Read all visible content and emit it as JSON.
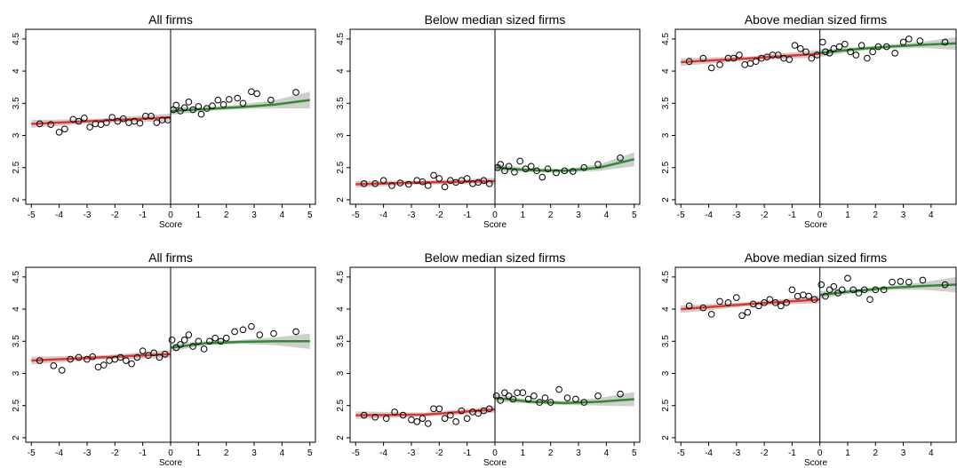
{
  "chart_data": [
    {
      "type": "scatter",
      "title": "All firms",
      "x_label": "Score",
      "xlim": [
        -5.2,
        5.2
      ],
      "ylim": [
        1.93,
        4.65
      ],
      "xticks": [
        -5,
        -4,
        -3,
        -2,
        -1,
        0,
        1,
        2,
        3,
        4,
        5
      ],
      "yticks": [
        2,
        2.5,
        3,
        3.5,
        4,
        4.5
      ],
      "cutoff": 0,
      "points": {
        "x": [
          -4.7,
          -4.3,
          -4.0,
          -3.8,
          -3.5,
          -3.3,
          -3.1,
          -2.9,
          -2.7,
          -2.5,
          -2.3,
          -2.1,
          -1.9,
          -1.7,
          -1.5,
          -1.3,
          -1.1,
          -0.9,
          -0.7,
          -0.5,
          -0.3,
          -0.1,
          0.1,
          0.2,
          0.35,
          0.5,
          0.65,
          0.8,
          1.0,
          1.1,
          1.3,
          1.5,
          1.7,
          1.9,
          2.1,
          2.4,
          2.6,
          2.9,
          3.1,
          3.6,
          4.5
        ],
        "values": [
          3.18,
          3.17,
          3.05,
          3.1,
          3.25,
          3.22,
          3.27,
          3.13,
          3.18,
          3.17,
          3.2,
          3.28,
          3.22,
          3.26,
          3.2,
          3.22,
          3.19,
          3.3,
          3.3,
          3.2,
          3.24,
          3.24,
          3.4,
          3.47,
          3.38,
          3.43,
          3.52,
          3.4,
          3.45,
          3.33,
          3.42,
          3.46,
          3.55,
          3.48,
          3.56,
          3.58,
          3.5,
          3.68,
          3.65,
          3.55,
          3.67
        ]
      },
      "fits": [
        {
          "color": "#e8322b",
          "x": [
            -5,
            -2.5,
            0
          ],
          "values": [
            3.18,
            3.23,
            3.28
          ],
          "lower": [
            3.12,
            3.2,
            3.22
          ],
          "upper": [
            3.24,
            3.26,
            3.34
          ]
        },
        {
          "color": "#2e8b2e",
          "x": [
            0,
            1.25,
            2.5,
            3.75,
            5
          ],
          "values": [
            3.38,
            3.41,
            3.44,
            3.48,
            3.55
          ],
          "lower": [
            3.32,
            3.38,
            3.41,
            3.42,
            3.42
          ],
          "upper": [
            3.44,
            3.44,
            3.48,
            3.55,
            3.68
          ]
        }
      ]
    },
    {
      "type": "scatter",
      "title": "Below median sized firms",
      "x_label": "Score",
      "xlim": [
        -5.2,
        5.2
      ],
      "ylim": [
        1.93,
        4.65
      ],
      "xticks": [
        -5,
        -4,
        -3,
        -2,
        -1,
        0,
        1,
        2,
        3,
        4,
        5
      ],
      "yticks": [
        2,
        2.5,
        3,
        3.5,
        4,
        4.5
      ],
      "cutoff": 0,
      "points": {
        "x": [
          -4.7,
          -4.3,
          -4.0,
          -3.7,
          -3.4,
          -3.1,
          -2.8,
          -2.6,
          -2.4,
          -2.2,
          -2.0,
          -1.8,
          -1.6,
          -1.4,
          -1.2,
          -1.0,
          -0.8,
          -0.6,
          -0.4,
          -0.2,
          0.1,
          0.2,
          0.35,
          0.5,
          0.7,
          0.9,
          1.1,
          1.3,
          1.5,
          1.7,
          1.9,
          2.2,
          2.5,
          2.8,
          3.2,
          3.7,
          4.5
        ],
        "values": [
          2.25,
          2.25,
          2.3,
          2.22,
          2.26,
          2.24,
          2.3,
          2.28,
          2.22,
          2.38,
          2.33,
          2.2,
          2.3,
          2.27,
          2.3,
          2.33,
          2.25,
          2.27,
          2.3,
          2.25,
          2.5,
          2.55,
          2.45,
          2.52,
          2.43,
          2.6,
          2.48,
          2.52,
          2.45,
          2.35,
          2.48,
          2.42,
          2.45,
          2.44,
          2.5,
          2.55,
          2.65
        ]
      },
      "fits": [
        {
          "color": "#e8322b",
          "x": [
            -5,
            -2.5,
            0
          ],
          "values": [
            2.24,
            2.27,
            2.29
          ],
          "lower": [
            2.19,
            2.24,
            2.24
          ],
          "upper": [
            2.29,
            2.3,
            2.34
          ]
        },
        {
          "color": "#2e8b2e",
          "x": [
            0,
            1.25,
            2.5,
            3.75,
            5
          ],
          "values": [
            2.5,
            2.46,
            2.45,
            2.5,
            2.63
          ],
          "lower": [
            2.44,
            2.43,
            2.42,
            2.45,
            2.52
          ],
          "upper": [
            2.56,
            2.49,
            2.48,
            2.55,
            2.74
          ]
        }
      ]
    },
    {
      "type": "scatter",
      "title": "Above median sized firms",
      "x_label": "Score",
      "xlim": [
        -5.2,
        4.9
      ],
      "ylim": [
        1.93,
        4.65
      ],
      "xticks": [
        -5,
        -4,
        -3,
        -2,
        -1,
        0,
        1,
        2,
        3,
        4
      ],
      "yticks": [
        2,
        2.5,
        3,
        3.5,
        4,
        4.5
      ],
      "cutoff": 0,
      "points": {
        "x": [
          -4.7,
          -4.2,
          -3.9,
          -3.6,
          -3.3,
          -3.1,
          -2.9,
          -2.7,
          -2.5,
          -2.3,
          -2.1,
          -1.9,
          -1.7,
          -1.5,
          -1.3,
          -1.1,
          -0.9,
          -0.7,
          -0.5,
          -0.3,
          -0.1,
          0.1,
          0.2,
          0.35,
          0.5,
          0.7,
          0.9,
          1.1,
          1.3,
          1.5,
          1.7,
          1.9,
          2.1,
          2.4,
          2.7,
          3.0,
          3.2,
          3.6,
          4.5
        ],
        "values": [
          4.15,
          4.2,
          4.05,
          4.1,
          4.2,
          4.2,
          4.25,
          4.1,
          4.12,
          4.15,
          4.2,
          4.22,
          4.25,
          4.25,
          4.2,
          4.18,
          4.4,
          4.35,
          4.3,
          4.2,
          4.25,
          4.45,
          4.3,
          4.28,
          4.35,
          4.38,
          4.42,
          4.3,
          4.25,
          4.4,
          4.2,
          4.3,
          4.38,
          4.38,
          4.28,
          4.45,
          4.5,
          4.47,
          4.45
        ]
      },
      "fits": [
        {
          "color": "#e8322b",
          "x": [
            -5,
            -2.5,
            0
          ],
          "values": [
            4.14,
            4.2,
            4.27
          ],
          "lower": [
            4.08,
            4.17,
            4.21
          ],
          "upper": [
            4.2,
            4.23,
            4.33
          ]
        },
        {
          "color": "#2e8b2e",
          "x": [
            0,
            1.25,
            2.5,
            3.75,
            4.9
          ],
          "values": [
            4.28,
            4.34,
            4.38,
            4.41,
            4.43
          ],
          "lower": [
            4.22,
            4.31,
            4.35,
            4.36,
            4.33
          ],
          "upper": [
            4.34,
            4.37,
            4.41,
            4.46,
            4.53
          ]
        }
      ]
    },
    {
      "type": "scatter",
      "title": "All firms",
      "x_label": "Score",
      "xlim": [
        -5.2,
        5.2
      ],
      "ylim": [
        1.93,
        4.65
      ],
      "xticks": [
        -5,
        -4,
        -3,
        -2,
        -1,
        0,
        1,
        2,
        3,
        4,
        5
      ],
      "yticks": [
        2,
        2.5,
        3,
        3.5,
        4,
        4.5
      ],
      "cutoff": 0,
      "points": {
        "x": [
          -4.7,
          -4.2,
          -3.9,
          -3.6,
          -3.3,
          -3.0,
          -2.8,
          -2.6,
          -2.4,
          -2.2,
          -2.0,
          -1.8,
          -1.6,
          -1.4,
          -1.2,
          -1.0,
          -0.8,
          -0.6,
          -0.4,
          -0.2,
          0.05,
          0.2,
          0.35,
          0.5,
          0.65,
          0.8,
          1.0,
          1.2,
          1.4,
          1.6,
          1.8,
          2.0,
          2.3,
          2.6,
          2.9,
          3.2,
          3.7,
          4.5
        ],
        "values": [
          3.2,
          3.12,
          3.05,
          3.22,
          3.25,
          3.22,
          3.26,
          3.1,
          3.13,
          3.2,
          3.22,
          3.25,
          3.2,
          3.15,
          3.25,
          3.35,
          3.28,
          3.32,
          3.25,
          3.3,
          3.52,
          3.4,
          3.45,
          3.52,
          3.6,
          3.42,
          3.5,
          3.38,
          3.5,
          3.55,
          3.5,
          3.55,
          3.65,
          3.68,
          3.73,
          3.6,
          3.62,
          3.65
        ]
      },
      "fits": [
        {
          "color": "#e8322b",
          "x": [
            -5,
            -2.5,
            0
          ],
          "values": [
            3.2,
            3.25,
            3.3
          ],
          "lower": [
            3.14,
            3.22,
            3.24
          ],
          "upper": [
            3.26,
            3.28,
            3.36
          ]
        },
        {
          "color": "#2e8b2e",
          "x": [
            0,
            1.25,
            2.5,
            3.75,
            5
          ],
          "values": [
            3.4,
            3.47,
            3.49,
            3.5,
            3.5
          ],
          "lower": [
            3.34,
            3.44,
            3.46,
            3.44,
            3.38
          ],
          "upper": [
            3.46,
            3.5,
            3.52,
            3.56,
            3.62
          ]
        }
      ]
    },
    {
      "type": "scatter",
      "title": "Below median sized firms",
      "x_label": "Score",
      "xlim": [
        -5.2,
        5.2
      ],
      "ylim": [
        1.93,
        4.65
      ],
      "xticks": [
        -5,
        -4,
        -3,
        -2,
        -1,
        0,
        1,
        2,
        3,
        4,
        5
      ],
      "yticks": [
        2,
        2.5,
        3,
        3.5,
        4,
        4.5
      ],
      "cutoff": 0,
      "points": {
        "x": [
          -4.7,
          -4.3,
          -3.9,
          -3.6,
          -3.3,
          -3.0,
          -2.8,
          -2.6,
          -2.4,
          -2.2,
          -2.0,
          -1.8,
          -1.6,
          -1.4,
          -1.2,
          -1.0,
          -0.8,
          -0.6,
          -0.4,
          -0.2,
          0.05,
          0.2,
          0.35,
          0.5,
          0.65,
          0.8,
          1.0,
          1.2,
          1.4,
          1.6,
          1.8,
          2.0,
          2.3,
          2.6,
          2.9,
          3.2,
          3.7,
          4.5
        ],
        "values": [
          2.35,
          2.32,
          2.3,
          2.4,
          2.35,
          2.28,
          2.25,
          2.3,
          2.22,
          2.45,
          2.45,
          2.3,
          2.35,
          2.25,
          2.42,
          2.3,
          2.4,
          2.38,
          2.42,
          2.45,
          2.65,
          2.58,
          2.7,
          2.65,
          2.6,
          2.7,
          2.7,
          2.6,
          2.65,
          2.55,
          2.62,
          2.55,
          2.75,
          2.62,
          2.6,
          2.55,
          2.65,
          2.68
        ]
      },
      "fits": [
        {
          "color": "#e8322b",
          "x": [
            -5,
            -2.5,
            0
          ],
          "values": [
            2.35,
            2.36,
            2.44
          ],
          "lower": [
            2.29,
            2.33,
            2.39
          ],
          "upper": [
            2.41,
            2.39,
            2.49
          ]
        },
        {
          "color": "#2e8b2e",
          "x": [
            0,
            1.25,
            2.5,
            3.75,
            5
          ],
          "values": [
            2.62,
            2.56,
            2.54,
            2.56,
            2.6
          ],
          "lower": [
            2.56,
            2.53,
            2.51,
            2.5,
            2.49
          ],
          "upper": [
            2.68,
            2.59,
            2.57,
            2.62,
            2.71
          ]
        }
      ]
    },
    {
      "type": "scatter",
      "title": "Above median sized firms",
      "x_label": "Score",
      "xlim": [
        -5.2,
        4.9
      ],
      "ylim": [
        1.93,
        4.65
      ],
      "xticks": [
        -5,
        -4,
        -3,
        -2,
        -1,
        0,
        1,
        2,
        3,
        4
      ],
      "yticks": [
        2,
        2.5,
        3,
        3.5,
        4,
        4.5
      ],
      "cutoff": 0,
      "points": {
        "x": [
          -4.7,
          -4.2,
          -3.9,
          -3.6,
          -3.3,
          -3.0,
          -2.8,
          -2.6,
          -2.4,
          -2.2,
          -2.0,
          -1.8,
          -1.6,
          -1.4,
          -1.2,
          -1.0,
          -0.8,
          -0.6,
          -0.4,
          -0.2,
          0.05,
          0.2,
          0.35,
          0.5,
          0.65,
          0.8,
          1.0,
          1.2,
          1.4,
          1.6,
          1.8,
          2.0,
          2.3,
          2.6,
          2.9,
          3.2,
          3.7,
          4.5
        ],
        "values": [
          4.05,
          4.02,
          3.92,
          4.12,
          4.1,
          4.18,
          3.9,
          3.95,
          4.08,
          4.05,
          4.1,
          4.15,
          4.1,
          4.05,
          4.1,
          4.3,
          4.2,
          4.22,
          4.2,
          4.15,
          4.38,
          4.2,
          4.3,
          4.35,
          4.25,
          4.3,
          4.48,
          4.3,
          4.25,
          4.3,
          4.15,
          4.3,
          4.3,
          4.42,
          4.43,
          4.42,
          4.45,
          4.38
        ]
      },
      "fits": [
        {
          "color": "#e8322b",
          "x": [
            -5,
            -2.5,
            0
          ],
          "values": [
            4.0,
            4.08,
            4.15
          ],
          "lower": [
            3.94,
            4.05,
            4.09
          ],
          "upper": [
            4.06,
            4.11,
            4.21
          ]
        },
        {
          "color": "#2e8b2e",
          "x": [
            0,
            1.25,
            2.5,
            3.75,
            4.9
          ],
          "values": [
            4.22,
            4.28,
            4.33,
            4.36,
            4.38
          ],
          "lower": [
            4.16,
            4.25,
            4.3,
            4.3,
            4.26
          ],
          "upper": [
            4.28,
            4.31,
            4.36,
            4.42,
            4.5
          ]
        }
      ]
    }
  ]
}
